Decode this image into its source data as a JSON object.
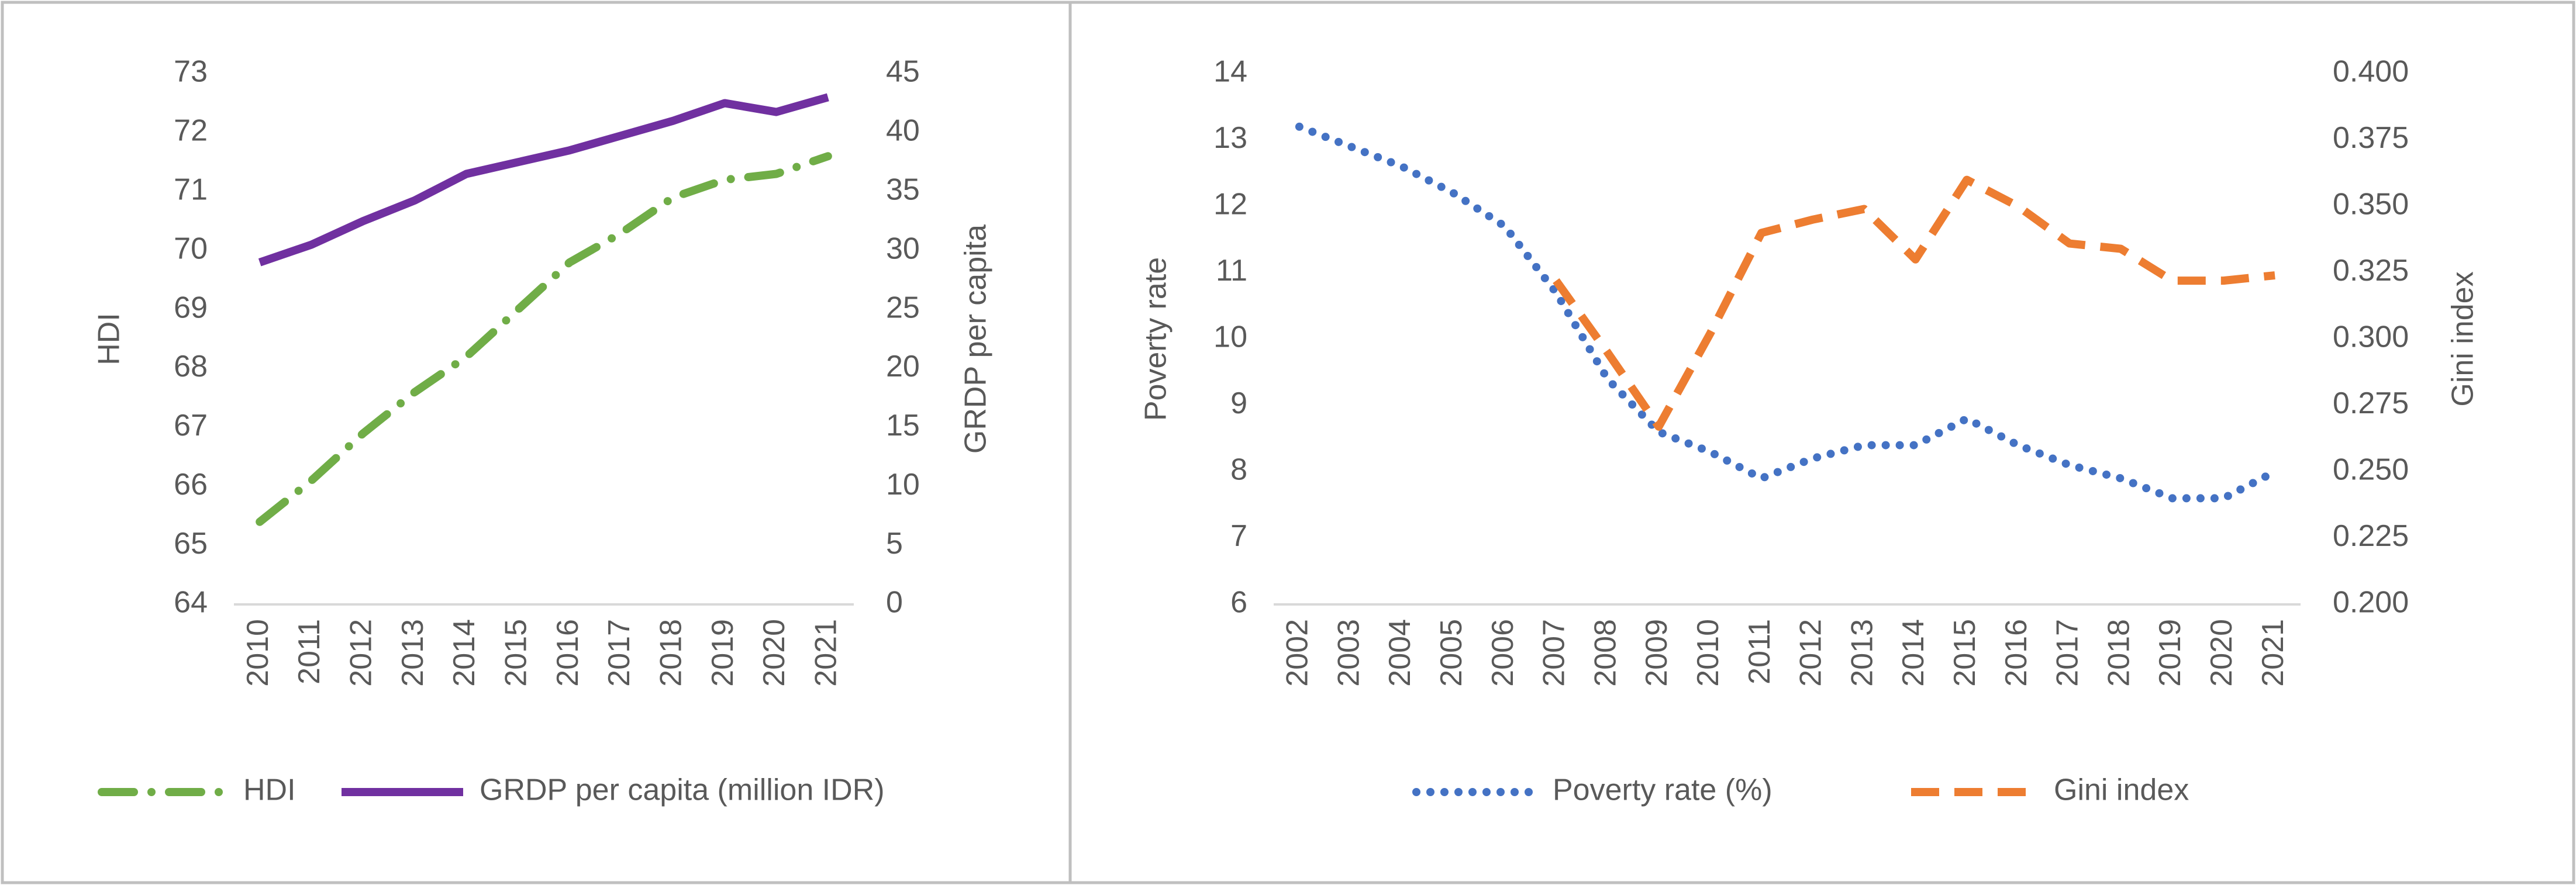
{
  "chart_data": [
    {
      "type": "line",
      "categories": [
        "2010",
        "2011",
        "2012",
        "2013",
        "2014",
        "2015",
        "2016",
        "2017",
        "2018",
        "2019",
        "2020",
        "2021"
      ],
      "ylabel": "HDI",
      "y2label": "GRDP per capita",
      "ylim": [
        64,
        73
      ],
      "yticks": [
        64,
        65,
        66,
        67,
        68,
        69,
        70,
        71,
        72,
        73
      ],
      "y2lim": [
        0,
        45
      ],
      "y2ticks": [
        0,
        5,
        10,
        15,
        20,
        25,
        30,
        35,
        40,
        45
      ],
      "series": [
        {
          "name": "HDI",
          "color": "#70ad47",
          "values": [
            65.4,
            66.1,
            66.9,
            67.6,
            68.2,
            69.0,
            69.8,
            70.3,
            70.9,
            71.2,
            71.3,
            71.6
          ]
        },
        {
          "name": "GRDP per capita (million IDR)",
          "color": "#7030a0",
          "axis": "y2",
          "values": [
            29,
            30.5,
            32.5,
            34.25,
            36.5,
            37.5,
            38.5,
            39.75,
            41,
            42.5,
            41.75,
            43
          ]
        }
      ]
    },
    {
      "type": "line",
      "categories": [
        "2002",
        "2003",
        "2004",
        "2005",
        "2006",
        "2007",
        "2008",
        "2009",
        "2010",
        "2011",
        "2012",
        "2013",
        "2014",
        "2015",
        "2016",
        "2017",
        "2018",
        "2019",
        "2020",
        "2021"
      ],
      "ylabel": "Poverty rate",
      "y2label": "Gini index",
      "ylim": [
        6,
        14
      ],
      "yticks": [
        6,
        7,
        8,
        9,
        10,
        11,
        12,
        13,
        14
      ],
      "y2lim": [
        0.2,
        0.4
      ],
      "y2ticks": [
        {
          "value": 0.2,
          "label": "0.200"
        },
        0.225,
        {
          "value": 0.25,
          "label": "0.250"
        },
        0.275,
        {
          "value": 0.3,
          "label": "0.300"
        },
        0.325,
        {
          "value": 0.35,
          "label": "0.350"
        },
        0.375,
        {
          "value": 0.4,
          "label": "0.400"
        }
      ],
      "series": [
        {
          "name": "Poverty rate (%)",
          "color": "#4472c4",
          "values": [
            13.2,
            12.9,
            12.6,
            12.2,
            11.7,
            10.7,
            9.4,
            8.6,
            8.3,
            7.9,
            8.2,
            8.4,
            8.4,
            8.8,
            8.4,
            8.1,
            7.9,
            7.6,
            7.6,
            8.0
          ]
        },
        {
          "name": "Gini index",
          "color": "#ed7d31",
          "axis": "y2",
          "values": [
            null,
            null,
            null,
            null,
            null,
            0.322,
            0.295,
            0.267,
            0.302,
            0.34,
            0.345,
            0.349,
            0.33,
            0.36,
            0.35,
            0.336,
            0.334,
            0.322,
            0.322,
            0.324
          ]
        }
      ]
    }
  ]
}
